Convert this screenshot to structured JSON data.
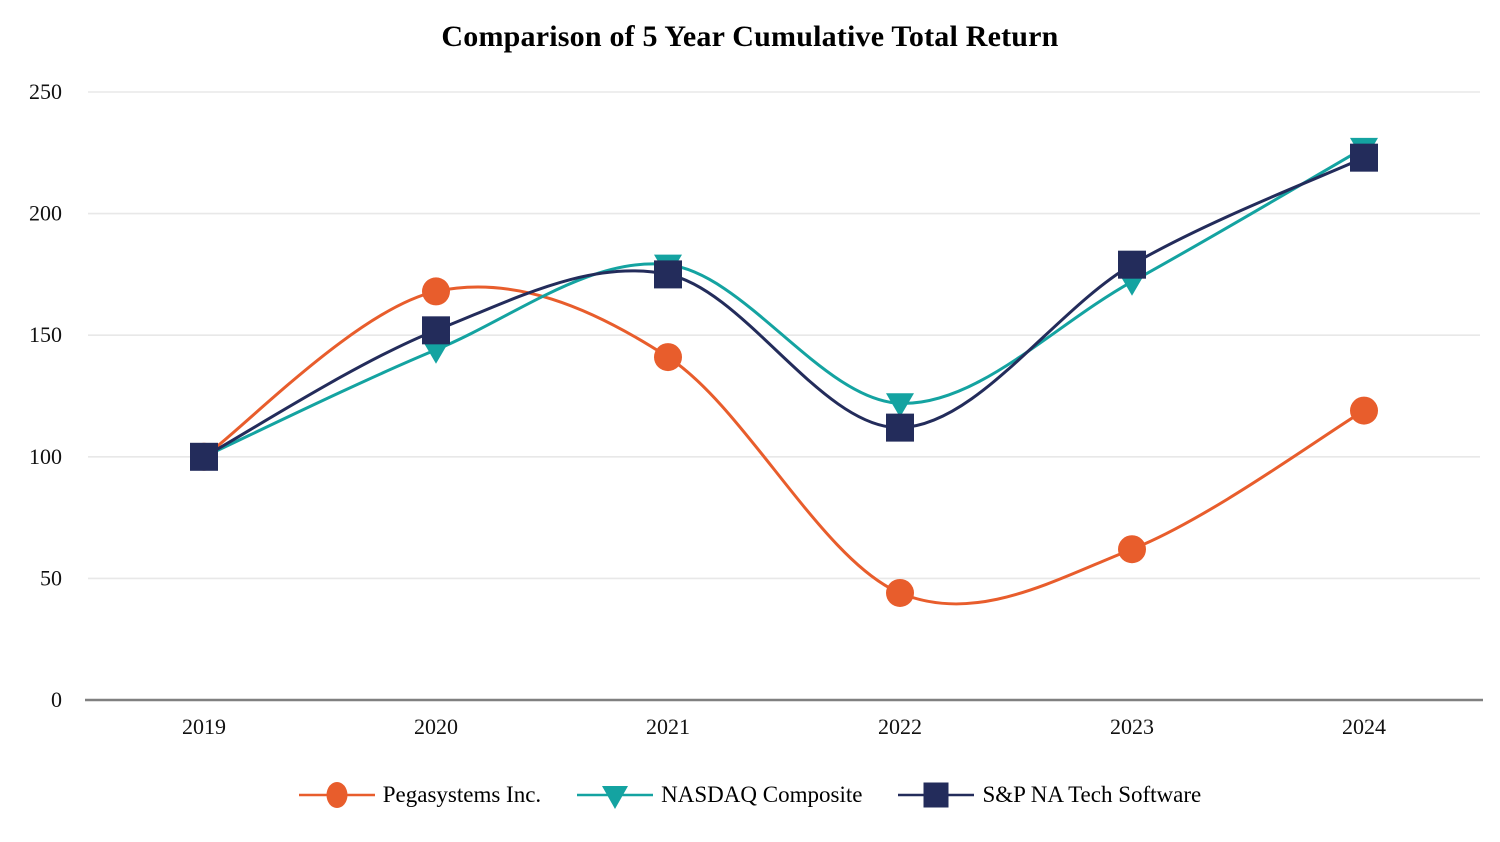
{
  "title": "Comparison of 5 Year Cumulative Total Return",
  "chart_data": {
    "type": "line",
    "title": "Comparison of 5 Year Cumulative Total Return",
    "categories": [
      "2019",
      "2020",
      "2021",
      "2022",
      "2023",
      "2024"
    ],
    "series": [
      {
        "name": "Pegasystems Inc.",
        "color": "#E85D2C",
        "marker": "circle",
        "values": [
          100,
          168,
          141,
          44,
          62,
          119
        ]
      },
      {
        "name": "NASDAQ Composite",
        "color": "#14A3A1",
        "marker": "triangle-down",
        "values": [
          100,
          144,
          179,
          122,
          172,
          227
        ]
      },
      {
        "name": "S&P NA Tech Software",
        "color": "#232C5B",
        "marker": "square",
        "values": [
          100,
          152,
          175,
          112,
          179,
          223
        ]
      }
    ],
    "xlabel": "",
    "ylabel": "",
    "ylim": [
      0,
      250
    ],
    "yticks": [
      0,
      50,
      100,
      150,
      200,
      250
    ],
    "grid": true,
    "line_style": "smooth",
    "legend_position": "bottom",
    "colors": {
      "gridline": "#E8E8E8",
      "axis_line": "#808080",
      "tick_text": "#111111",
      "title_text": "#000000",
      "background": "#FFFFFF"
    }
  }
}
